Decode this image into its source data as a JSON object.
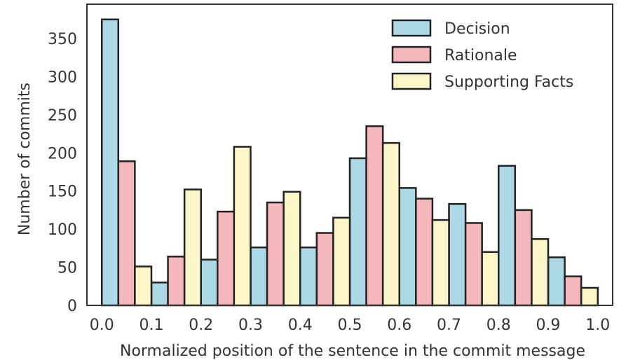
{
  "chart_data": {
    "type": "bar",
    "xlabel": "Normalized position of the sentence in the commit message",
    "ylabel": "Number of commits",
    "xlim": [
      -0.03,
      1.03
    ],
    "ylim": [
      0,
      395
    ],
    "xticks": [
      0.0,
      0.1,
      0.2,
      0.3,
      0.4,
      0.5,
      0.6,
      0.7,
      0.8,
      0.9,
      1.0
    ],
    "xtick_labels": [
      "0.0",
      "0.1",
      "0.2",
      "0.3",
      "0.4",
      "0.5",
      "0.6",
      "0.7",
      "0.8",
      "0.9",
      "1.0"
    ],
    "yticks": [
      0,
      50,
      100,
      150,
      200,
      250,
      300,
      350
    ],
    "ytick_labels": [
      "0",
      "50",
      "100",
      "150",
      "200",
      "250",
      "300",
      "350"
    ],
    "grid": false,
    "legend_position": "top-right",
    "bin_edges": [
      0.0,
      0.1,
      0.2,
      0.3,
      0.4,
      0.5,
      0.6,
      0.7,
      0.8,
      0.9,
      1.0
    ],
    "series": [
      {
        "name": "Decision",
        "color": "#add8e6",
        "values": [
          375,
          30,
          60,
          76,
          76,
          193,
          154,
          133,
          183,
          63
        ]
      },
      {
        "name": "Rationale",
        "color": "#f4b8bc",
        "values": [
          189,
          64,
          123,
          135,
          95,
          235,
          140,
          108,
          125,
          38
        ]
      },
      {
        "name": "Supporting Facts",
        "color": "#fdf6c8",
        "values": [
          51,
          152,
          208,
          149,
          115,
          213,
          112,
          70,
          87,
          23
        ]
      }
    ]
  }
}
